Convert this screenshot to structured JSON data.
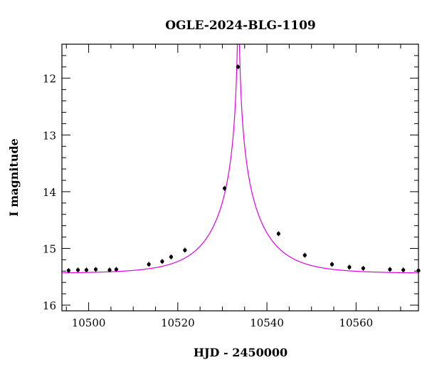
{
  "chart_data": {
    "type": "scatter",
    "title": "OGLE-2024-BLG-1109",
    "xlabel": "HJD - 2450000",
    "ylabel": "I magnitude",
    "xlim": [
      10494,
      10574
    ],
    "ylim": [
      16.1,
      11.4
    ],
    "y_inverted": true,
    "x_ticks": [
      10500,
      10520,
      10540,
      10560
    ],
    "x_tick_labels": [
      "10500",
      "10520",
      "10540",
      "10560"
    ],
    "y_ticks": [
      12,
      13,
      14,
      15,
      16
    ],
    "y_tick_labels": [
      "12",
      "13",
      "14",
      "15",
      "16"
    ],
    "grid": false,
    "series": [
      {
        "kind": "points",
        "color": "#000000",
        "x": [
          10495.5,
          10497.6,
          10499.5,
          10501.6,
          10504.7,
          10506.2,
          10513.5,
          10516.5,
          10518.5,
          10521.6,
          10530.5,
          10533.5,
          10542.6,
          10548.5,
          10554.6,
          10558.5,
          10561.6,
          10567.6,
          10570.6,
          10574.0
        ],
        "y": [
          15.39,
          15.38,
          15.38,
          15.37,
          15.38,
          15.37,
          15.28,
          15.23,
          15.15,
          15.03,
          13.94,
          11.8,
          14.74,
          15.12,
          15.28,
          15.33,
          15.35,
          15.37,
          15.38,
          15.39
        ]
      },
      {
        "kind": "model",
        "color": "#e000e0",
        "baseline_mag": 15.44,
        "t0": 10533.6,
        "tE": 11,
        "u0": 0.012
      }
    ]
  }
}
